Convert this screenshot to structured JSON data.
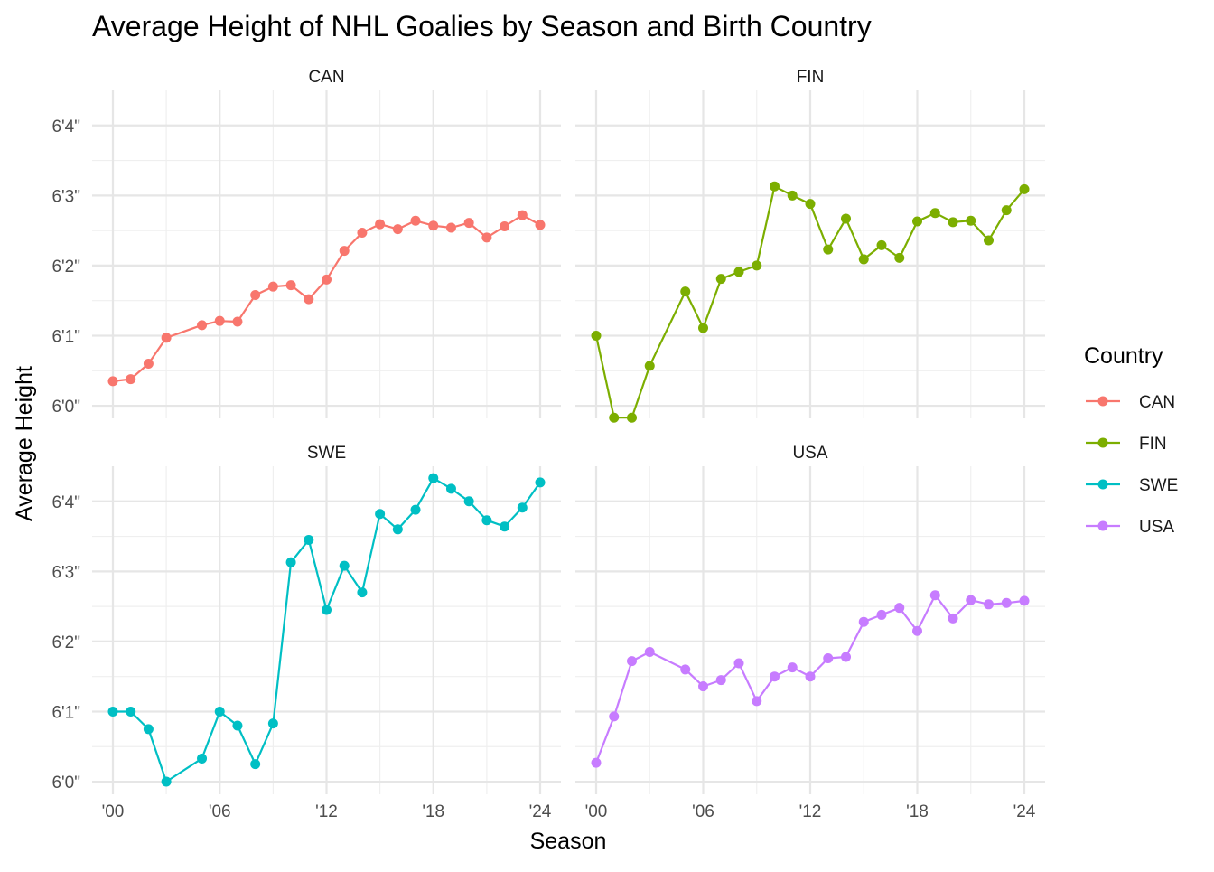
{
  "chart_data": {
    "type": "line",
    "title": "Average Height of NHL Goalies by Season and Birth Country",
    "xlabel": "Season",
    "ylabel": "Average Height",
    "legend_title": "Country",
    "legend_position": "right",
    "grid": true,
    "facets": [
      "CAN",
      "FIN",
      "SWE",
      "USA"
    ],
    "x_ticks": [
      2000,
      2006,
      2012,
      2018,
      2024
    ],
    "x_tick_labels": [
      "'00",
      "'06",
      "'12",
      "'18",
      "'24"
    ],
    "xlim": [
      2000,
      2024
    ],
    "y_ticks": [
      72,
      73,
      74,
      75,
      76
    ],
    "y_tick_labels": [
      "6'0\"",
      "6'1\"",
      "6'2\"",
      "6'3\"",
      "6'4\""
    ],
    "ylim": [
      71.82,
      76.5
    ],
    "y_unit": "inches",
    "colors": {
      "CAN": "#F8766D",
      "FIN": "#7CAE00",
      "SWE": "#00BFC4",
      "USA": "#C77CFF"
    },
    "series": [
      {
        "name": "CAN",
        "x": [
          2000,
          2001,
          2002,
          2003,
          2005,
          2006,
          2007,
          2008,
          2009,
          2010,
          2011,
          2012,
          2013,
          2014,
          2015,
          2016,
          2017,
          2018,
          2019,
          2020,
          2021,
          2022,
          2023,
          2024
        ],
        "values": [
          72.35,
          72.38,
          72.6,
          72.97,
          73.15,
          73.21,
          73.2,
          73.58,
          73.7,
          73.72,
          73.52,
          73.8,
          74.21,
          74.47,
          74.59,
          74.52,
          74.64,
          74.57,
          74.54,
          74.61,
          74.4,
          74.56,
          74.72,
          74.58
        ]
      },
      {
        "name": "FIN",
        "x": [
          2000,
          2001,
          2002,
          2003,
          2005,
          2006,
          2007,
          2008,
          2009,
          2010,
          2011,
          2012,
          2013,
          2014,
          2015,
          2016,
          2017,
          2018,
          2019,
          2020,
          2021,
          2022,
          2023,
          2024
        ],
        "values": [
          73.0,
          71.83,
          71.83,
          72.57,
          73.63,
          73.11,
          73.81,
          73.91,
          74.0,
          75.13,
          75.0,
          74.88,
          74.23,
          74.67,
          74.09,
          74.29,
          74.11,
          74.63,
          74.75,
          74.62,
          74.64,
          74.36,
          74.79,
          75.09
        ]
      },
      {
        "name": "SWE",
        "x": [
          2000,
          2001,
          2002,
          2003,
          2005,
          2006,
          2007,
          2008,
          2009,
          2010,
          2011,
          2012,
          2013,
          2014,
          2015,
          2016,
          2017,
          2018,
          2019,
          2020,
          2021,
          2022,
          2023,
          2024
        ],
        "values": [
          73.0,
          73.0,
          72.75,
          72.0,
          72.33,
          73.0,
          72.8,
          72.25,
          72.83,
          75.13,
          75.45,
          74.45,
          75.08,
          74.7,
          75.82,
          75.6,
          75.88,
          76.33,
          76.18,
          76.0,
          75.73,
          75.64,
          75.91,
          76.27
        ]
      },
      {
        "name": "USA",
        "x": [
          2000,
          2001,
          2002,
          2003,
          2005,
          2006,
          2007,
          2008,
          2009,
          2010,
          2011,
          2012,
          2013,
          2014,
          2015,
          2016,
          2017,
          2018,
          2019,
          2020,
          2021,
          2022,
          2023,
          2024
        ],
        "values": [
          72.27,
          72.93,
          73.72,
          73.85,
          73.6,
          73.36,
          73.45,
          73.69,
          73.15,
          73.5,
          73.63,
          73.5,
          73.76,
          73.78,
          74.28,
          74.38,
          74.48,
          74.15,
          74.66,
          74.33,
          74.59,
          74.53,
          74.55,
          74.58
        ]
      }
    ]
  }
}
